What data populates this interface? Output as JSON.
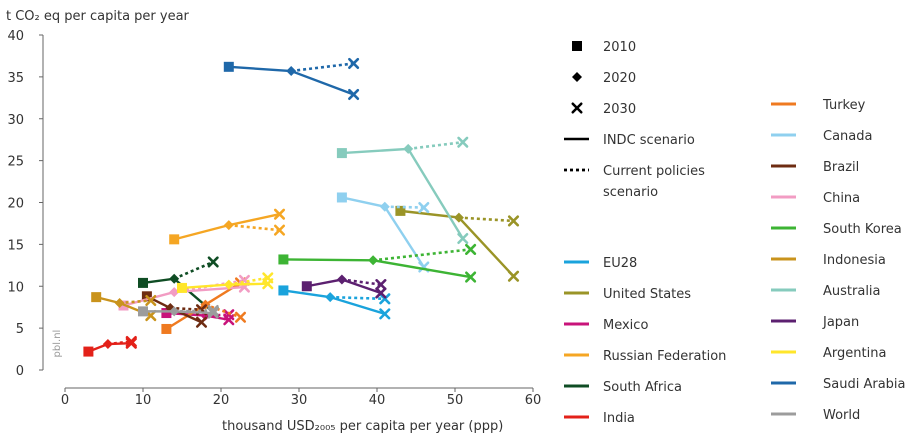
{
  "chart_data": {
    "type": "line",
    "ylabel": "t CO₂ eq per capita per year",
    "xlabel": "thousand USD₂₀₀₅ per capita per year (ppp)",
    "xlim": [
      0,
      60
    ],
    "ylim": [
      0,
      40
    ],
    "xticks": [
      0,
      10,
      20,
      30,
      40,
      50,
      60
    ],
    "yticks": [
      0,
      5,
      10,
      15,
      20,
      25,
      30,
      35,
      40
    ],
    "grid": false,
    "watermark": "pbl.nl",
    "marker_legend": [
      {
        "marker": "square",
        "label": "2010"
      },
      {
        "marker": "diamond",
        "label": "2020"
      },
      {
        "marker": "cross",
        "label": "2030"
      }
    ],
    "line_legend": [
      {
        "style": "solid",
        "label": "INDC scenario"
      },
      {
        "style": "dotted",
        "label": "Current policies scenario"
      }
    ],
    "series": [
      {
        "name": "EU28",
        "color": "#1aa3dc",
        "y2010": [
          28,
          9.5
        ],
        "y2020": [
          34,
          8.7
        ],
        "indc2030": [
          41,
          6.7
        ],
        "cp2030": [
          41,
          8.5
        ]
      },
      {
        "name": "United States",
        "color": "#9a9427",
        "y2010": [
          43,
          19
        ],
        "y2020": [
          50.5,
          18.2
        ],
        "indc2030": [
          57.5,
          11.2
        ],
        "cp2030": [
          57.5,
          17.8
        ]
      },
      {
        "name": "Mexico",
        "color": "#c8137a",
        "y2010": [
          13,
          6.8
        ],
        "y2020": [
          18,
          6.5
        ],
        "indc2030": [
          21,
          6.0
        ],
        "cp2030": [
          21,
          6.6
        ]
      },
      {
        "name": "Russian Federation",
        "color": "#f5a623",
        "y2010": [
          14,
          15.6
        ],
        "y2020": [
          21,
          17.3
        ],
        "indc2030": [
          27.5,
          18.6
        ],
        "cp2030": [
          27.5,
          16.7
        ]
      },
      {
        "name": "South Africa",
        "color": "#0f4d24",
        "y2010": [
          10,
          10.4
        ],
        "y2020": [
          14,
          10.9
        ],
        "indc2030": [
          19,
          6.9
        ],
        "cp2030": [
          19,
          12.9
        ]
      },
      {
        "name": "India",
        "color": "#e32119",
        "y2010": [
          3,
          2.2
        ],
        "y2020": [
          5.5,
          3.1
        ],
        "indc2030": [
          8.5,
          3.2
        ],
        "cp2030": [
          8.5,
          3.4
        ]
      },
      {
        "name": "Turkey",
        "color": "#ef7a20",
        "y2010": [
          13,
          4.9
        ],
        "y2020": [
          18,
          7.8
        ],
        "indc2030": [
          22.5,
          10.4
        ],
        "cp2030": [
          22.5,
          6.3
        ]
      },
      {
        "name": "Canada",
        "color": "#8fd0ef",
        "y2010": [
          35.5,
          20.6
        ],
        "y2020": [
          41,
          19.5
        ],
        "indc2030": [
          46,
          12.3
        ],
        "cp2030": [
          46,
          19.4
        ]
      },
      {
        "name": "Brazil",
        "color": "#6e2c12",
        "y2010": [
          10.5,
          8.8
        ],
        "y2020": [
          13.5,
          7.4
        ],
        "indc2030": [
          17.5,
          5.7
        ],
        "cp2030": [
          17.5,
          7.2
        ]
      },
      {
        "name": "China",
        "color": "#f29cc3",
        "y2010": [
          7.5,
          7.7
        ],
        "y2020": [
          14,
          9.3
        ],
        "indc2030": [
          23,
          9.9
        ],
        "cp2030": [
          23,
          10.7
        ]
      },
      {
        "name": "South Korea",
        "color": "#3db434",
        "y2010": [
          28,
          13.2
        ],
        "y2020": [
          39.5,
          13.1
        ],
        "indc2030": [
          52,
          11.1
        ],
        "cp2030": [
          52,
          14.4
        ]
      },
      {
        "name": "Indonesia",
        "color": "#c9931c",
        "y2010": [
          4,
          8.7
        ],
        "y2020": [
          7,
          8.0
        ],
        "indc2030": [
          11,
          6.5
        ],
        "cp2030": [
          11,
          8.3
        ]
      },
      {
        "name": "Australia",
        "color": "#86cbbd",
        "y2010": [
          35.5,
          25.9
        ],
        "y2020": [
          44,
          26.4
        ],
        "indc2030": [
          51,
          15.7
        ],
        "cp2030": [
          51,
          27.2
        ]
      },
      {
        "name": "Japan",
        "color": "#5c2070",
        "y2010": [
          31,
          10.0
        ],
        "y2020": [
          35.5,
          10.8
        ],
        "indc2030": [
          40.5,
          9.2
        ],
        "cp2030": [
          40.5,
          10.2
        ]
      },
      {
        "name": "Argentina",
        "color": "#ffe62b",
        "y2010": [
          15,
          9.8
        ],
        "y2020": [
          21,
          10.2
        ],
        "indc2030": [
          26,
          10.3
        ],
        "cp2030": [
          26,
          11.0
        ]
      },
      {
        "name": "Saudi Arabia",
        "color": "#1f68a9",
        "y2010": [
          21,
          36.2
        ],
        "y2020": [
          29,
          35.7
        ],
        "indc2030": [
          37,
          32.9
        ],
        "cp2030": [
          37,
          36.6
        ]
      },
      {
        "name": "World",
        "color": "#9c9c9c",
        "y2010": [
          10,
          7.0
        ],
        "y2020": [
          14,
          7.0
        ],
        "indc2030": [
          19,
          6.8
        ],
        "cp2030": [
          19,
          7.1
        ]
      }
    ],
    "legend_left": [
      "EU28",
      "United States",
      "Mexico",
      "Russian Federation",
      "South Africa",
      "India"
    ],
    "legend_right": [
      "Turkey",
      "Canada",
      "Brazil",
      "China",
      "South Korea",
      "Indonesia",
      "Australia",
      "Japan",
      "Argentina",
      "Saudi Arabia",
      "World"
    ]
  }
}
